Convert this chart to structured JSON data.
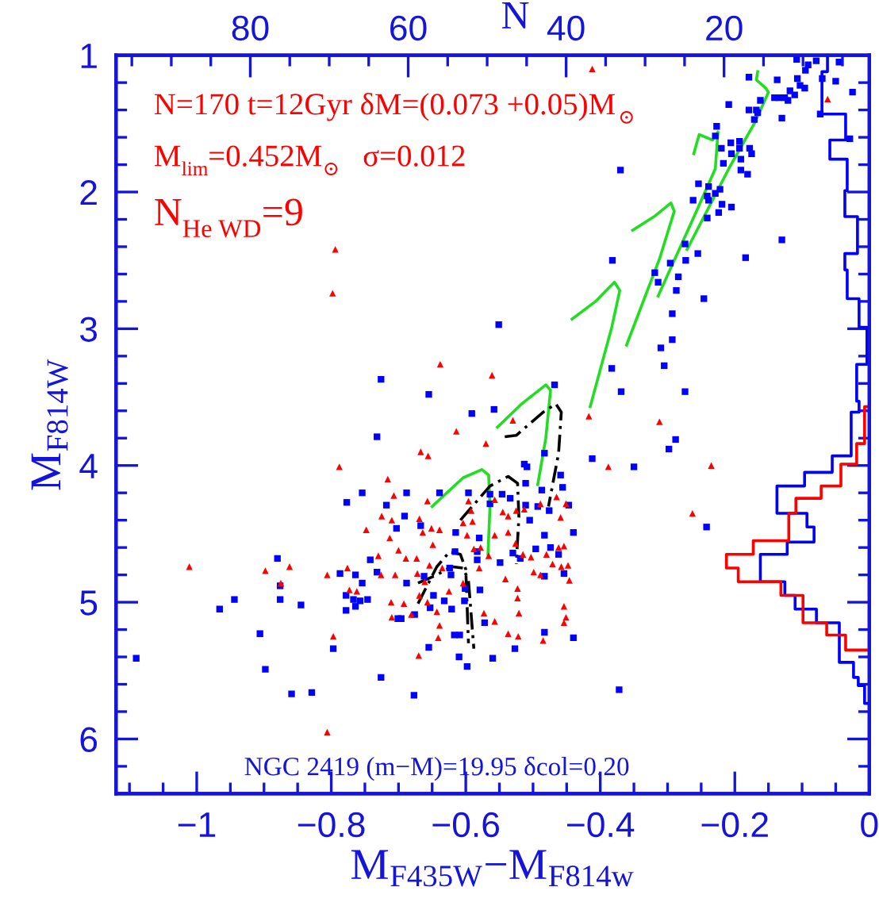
{
  "chart_data": {
    "type": "scatter",
    "xlabel": "M$_{F435W}$−M$_{F814w}$",
    "ylabel": "M$_{F814W}$",
    "x2label": "N",
    "xlim": [
      -1.12,
      0
    ],
    "ylim": [
      6.4,
      1
    ],
    "x2lim": [
      97,
      1.6
    ],
    "xticks": [
      {
        "value": -1,
        "label": "−1"
      },
      {
        "value": -0.8,
        "label": "−0.8"
      },
      {
        "value": -0.6,
        "label": "−0.6"
      },
      {
        "value": -0.4,
        "label": "−0.4"
      },
      {
        "value": -0.2,
        "label": "−0.2"
      },
      0
    ],
    "yticks": [
      1,
      2,
      3,
      4,
      5,
      6
    ],
    "x2ticks": [
      80,
      60,
      40,
      20
    ],
    "grid": false,
    "legend": false,
    "annotations": [
      "N=170 t=12Gyr δM=(0.073 +0.05)M$_{⊙}$",
      "M$_{lim}$=0.452M$_{⊙}$   σ=0.012",
      "N$_{He WD}$=9",
      "NGC 2419 (m−M)=19.95 δcol=0.20"
    ],
    "series": [
      {
        "color": "#0000ff",
        "marker": "square",
        "x": [
          -0.551,
          -0.726,
          -0.655,
          -0.591,
          -0.558,
          -0.732,
          -0.468,
          -0.513,
          -0.509,
          -0.483,
          -0.688,
          -0.639,
          -0.596,
          -0.564,
          -0.511,
          -0.487,
          -0.459,
          -0.456,
          -0.754,
          -0.777,
          -0.718,
          -0.691,
          -0.667,
          -0.703,
          -0.615,
          -0.58,
          -0.564,
          -0.546,
          -0.534,
          -0.511,
          -0.493,
          -0.476,
          -0.447,
          -0.505,
          -0.483,
          -0.474,
          -0.496,
          -0.462,
          -0.44,
          -0.88,
          -0.742,
          -0.764,
          -0.787,
          -0.754,
          -0.732,
          -0.688,
          -0.662,
          -0.624,
          -0.622,
          -0.616,
          -0.583,
          -0.583,
          -0.549,
          -0.53,
          -0.519,
          -0.483,
          -0.454,
          -0.876,
          -0.876,
          -0.845,
          -0.778,
          -0.767,
          -0.757,
          -0.746,
          -0.778,
          -0.764,
          -0.701,
          -0.696,
          -0.676,
          -0.653,
          -0.648,
          -0.632,
          -0.621,
          -0.602,
          -0.601,
          -0.579,
          -0.966,
          -0.944,
          -0.906,
          -0.797,
          -0.655,
          -0.617,
          -0.609,
          -0.61,
          -0.598,
          -0.56,
          -0.527,
          -0.483,
          -0.44,
          -1.09,
          -0.898,
          -0.726,
          -0.859,
          -0.829,
          -0.677,
          -0.572,
          -0.108,
          -0.091,
          -0.079,
          -0.095,
          -0.045,
          -0.179,
          -0.137,
          -0.107,
          -0.103,
          -0.096,
          -0.118,
          -0.126,
          -0.141,
          -0.134,
          -0.121,
          -0.111,
          -0.162,
          -0.209,
          -0.179,
          -0.168,
          -0.166,
          -0.171,
          -0.13,
          -0.227,
          -0.229,
          -0.206,
          -0.193,
          -0.22,
          -0.205,
          -0.193,
          -0.191,
          -0.178,
          -0.175,
          -0.217,
          -0.191,
          -0.181,
          -0.239,
          -0.241,
          -0.262,
          -0.229,
          -0.222,
          -0.239,
          -0.219,
          -0.241,
          -0.224,
          -0.205,
          -0.254,
          -0.13,
          -0.274,
          -0.184,
          -0.255,
          -0.273,
          -0.296,
          -0.284,
          -0.319,
          -0.314,
          -0.287,
          -0.246,
          -0.293,
          -0.293,
          -0.31,
          -0.305,
          -0.383,
          -0.369,
          -0.274,
          -0.288,
          -0.298,
          -0.025,
          -0.073,
          -0.029,
          -0.37,
          -0.382,
          -0.412,
          -0.35,
          -0.07,
          -0.05,
          -0.372,
          -0.242
        ],
        "values": [
          2.97,
          3.37,
          3.48,
          3.62,
          3.59,
          3.79,
          3.41,
          3.99,
          4.01,
          3.91,
          4.2,
          4.2,
          4.2,
          4.21,
          4.13,
          4.18,
          4.07,
          4.16,
          4.2,
          4.27,
          4.29,
          4.37,
          4.44,
          4.46,
          4.49,
          4.53,
          4.28,
          4.21,
          4.24,
          4.29,
          4.3,
          4.33,
          4.29,
          4.4,
          4.51,
          4.6,
          4.61,
          4.65,
          4.49,
          4.68,
          4.69,
          4.8,
          4.79,
          4.86,
          4.78,
          4.86,
          4.81,
          4.75,
          4.8,
          4.63,
          4.63,
          4.69,
          4.71,
          4.64,
          4.68,
          4.81,
          4.79,
          4.88,
          4.98,
          5.02,
          4.95,
          4.98,
          4.99,
          4.98,
          5.06,
          5.03,
          5.12,
          5.12,
          5.09,
          5.04,
          4.95,
          4.99,
          5.05,
          4.99,
          4.9,
          4.91,
          5.05,
          4.98,
          5.23,
          5.34,
          5.33,
          5.24,
          5.24,
          5.4,
          5.47,
          5.41,
          5.34,
          5.22,
          5.26,
          5.41,
          5.49,
          5.55,
          5.67,
          5.66,
          5.68,
          5.15,
          1.03,
          1.07,
          1.04,
          1.11,
          1.05,
          1.16,
          1.18,
          1.17,
          1.22,
          1.24,
          1.26,
          1.31,
          1.31,
          1.31,
          1.33,
          1.29,
          1.33,
          1.36,
          1.4,
          1.4,
          1.42,
          1.47,
          1.46,
          1.52,
          1.59,
          1.64,
          1.63,
          1.68,
          1.72,
          1.68,
          1.76,
          1.68,
          1.72,
          1.79,
          1.84,
          1.87,
          1.96,
          2.03,
          2.06,
          2.01,
          1.98,
          2.06,
          2.09,
          2.19,
          2.15,
          2.11,
          1.94,
          2.35,
          2.38,
          2.48,
          2.45,
          2.5,
          2.52,
          2.62,
          2.59,
          2.66,
          2.72,
          2.78,
          2.89,
          3.08,
          3.14,
          3.27,
          3.29,
          3.46,
          3.46,
          3.81,
          3.88,
          1.27,
          1.43,
          1.61,
          1.84,
          2.5,
          3.95,
          4.01,
          1.17,
          1.19,
          5.64,
          4.45
        ]
      },
      {
        "color": "#ff0000",
        "marker": "triangle",
        "x": [
          -0.638,
          -0.561,
          -0.614,
          -0.57,
          -0.667,
          -0.656,
          -0.788,
          -0.716,
          -0.53,
          -0.707,
          -0.657,
          -0.725,
          -0.71,
          -0.748,
          -0.713,
          -0.669,
          -0.664,
          -0.651,
          -0.639,
          -0.649,
          -0.7,
          -0.73,
          -0.689,
          -0.673,
          -0.635,
          -0.654,
          -0.661,
          -0.596,
          -0.604,
          -0.59,
          -0.557,
          -0.545,
          -0.537,
          -0.525,
          -0.513,
          -0.489,
          -0.465,
          -0.451,
          -0.459,
          -0.462,
          -0.454,
          -0.537,
          -0.557,
          -0.578,
          -0.588,
          -0.598,
          -0.566,
          -0.526,
          -0.515,
          -0.503,
          -0.48,
          -0.471,
          -0.499,
          -0.489,
          -0.458,
          -0.448,
          -1.011,
          -0.898,
          -0.862,
          -0.875,
          -0.806,
          -0.776,
          -0.773,
          -0.762,
          -0.726,
          -0.705,
          -0.672,
          -0.669,
          -0.692,
          -0.711,
          -0.657,
          -0.643,
          -0.681,
          -0.71,
          -0.639,
          -0.641,
          -0.67,
          -0.797,
          -0.625,
          -0.604,
          -0.573,
          -0.557,
          -0.541,
          -0.523,
          -0.523,
          -0.521,
          -0.537,
          -0.522,
          -0.485,
          -0.454,
          -0.451,
          -0.454,
          -0.446,
          -0.58,
          -0.592,
          -0.412,
          -0.062,
          -0.417,
          -0.312,
          -0.235,
          -0.388,
          -0.794,
          -0.798,
          -0.806,
          -0.263
        ],
        "values": [
          3.26,
          3.34,
          3.75,
          3.84,
          3.9,
          3.93,
          4.01,
          4.1,
          3.67,
          4.22,
          4.26,
          4.37,
          4.4,
          4.47,
          4.53,
          4.39,
          4.49,
          4.46,
          4.47,
          4.58,
          4.62,
          4.66,
          4.68,
          4.68,
          4.75,
          4.73,
          4.85,
          4.26,
          4.42,
          4.41,
          4.25,
          4.34,
          4.37,
          4.33,
          4.32,
          4.28,
          4.23,
          4.28,
          4.38,
          4.6,
          4.59,
          4.49,
          4.51,
          4.6,
          4.61,
          4.51,
          4.66,
          4.57,
          4.65,
          4.67,
          4.65,
          4.72,
          4.78,
          4.8,
          4.74,
          4.73,
          4.74,
          4.77,
          4.74,
          4.86,
          4.8,
          4.75,
          4.91,
          4.92,
          4.8,
          4.8,
          4.79,
          4.95,
          5.01,
          5.0,
          5.0,
          5.07,
          5.09,
          5.11,
          5.17,
          5.26,
          5.39,
          5.25,
          4.92,
          4.86,
          5.08,
          5.14,
          4.83,
          4.9,
          4.97,
          5.08,
          5.23,
          5.25,
          5.28,
          5.03,
          5.11,
          5.15,
          4.84,
          4.75,
          4.33,
          1.1,
          1.32,
          3.64,
          3.68,
          4.0,
          4.01,
          2.42,
          2.74,
          5.95,
          4.35
        ]
      },
      {
        "type": "line",
        "color": "#22dd22",
        "line_style": "solid",
        "x": [
          -0.65,
          -0.604,
          -0.576,
          -0.566,
          -0.564,
          -0.567
        ],
        "values": [
          4.3,
          4.09,
          4.03,
          4.07,
          4.3,
          4.65
        ]
      },
      {
        "type": "line",
        "color": "#22dd22",
        "line_style": "solid",
        "x": [
          -0.553,
          -0.517,
          -0.481,
          -0.474,
          -0.481,
          -0.493
        ],
        "values": [
          3.72,
          3.55,
          3.41,
          3.45,
          3.8,
          4.14
        ]
      },
      {
        "type": "line",
        "color": "#22dd22",
        "line_style": "solid",
        "x": [
          -0.442,
          -0.407,
          -0.379,
          -0.371,
          -0.383,
          -0.415
        ],
        "values": [
          2.93,
          2.8,
          2.66,
          2.72,
          2.99,
          3.57
        ]
      },
      {
        "type": "line",
        "color": "#22dd22",
        "line_style": "solid",
        "x": [
          -0.352,
          -0.32,
          -0.295,
          -0.29,
          -0.312,
          -0.361
        ],
        "values": [
          2.28,
          2.18,
          2.08,
          2.14,
          2.49,
          3.12
        ]
      },
      {
        "type": "line",
        "color": "#22dd22",
        "line_style": "solid",
        "x": [
          -0.261,
          -0.253,
          -0.233,
          -0.225,
          -0.229,
          -0.257,
          -0.314
        ],
        "values": [
          1.72,
          1.58,
          1.62,
          1.56,
          1.83,
          2.14,
          2.76
        ]
      },
      {
        "type": "line",
        "color": "#22dd22",
        "line_style": "solid",
        "x": [
          -0.166,
          -0.168,
          -0.154,
          -0.15,
          -0.17,
          -0.209,
          -0.271
        ],
        "values": [
          1.12,
          1.18,
          1.24,
          1.27,
          1.49,
          1.83,
          2.42
        ]
      },
      {
        "type": "line",
        "color": "#000000",
        "line_style": "dashed",
        "x": [
          -0.542,
          -0.525,
          -0.485,
          -0.466,
          -0.458,
          -0.462,
          -0.477
        ],
        "values": [
          3.79,
          3.78,
          3.61,
          3.55,
          3.61,
          3.91,
          4.3
        ]
      },
      {
        "type": "line",
        "color": "#000000",
        "line_style": "dashed",
        "x": [
          -0.608,
          -0.564,
          -0.537,
          -0.523,
          -0.521,
          -0.525
        ],
        "values": [
          4.4,
          4.15,
          4.08,
          4.13,
          4.38,
          4.72
        ]
      },
      {
        "type": "line",
        "color": "#000000",
        "line_style": "dashed",
        "x": [
          -0.671,
          -0.643,
          -0.624,
          -0.608,
          -0.6,
          -0.596
        ],
        "values": [
          5.01,
          4.74,
          4.63,
          4.65,
          4.76,
          5.3
        ]
      },
      {
        "type": "line",
        "color": "#000000",
        "line_style": "dashed",
        "x": [
          -0.671,
          -0.643,
          -0.621,
          -0.604,
          -0.596,
          -0.588
        ],
        "values": [
          4.86,
          4.8,
          4.74,
          4.75,
          4.84,
          5.34
        ]
      },
      {
        "type": "line",
        "axis": "x2",
        "color": "#0000ff",
        "line_style": "solid",
        "x": [
          6.9,
          6.9,
          7.6,
          7.6,
          4.6,
          4.6,
          6.6,
          6.6,
          4.4,
          4.4,
          4.7,
          4.7,
          3.1,
          3.1,
          4.7,
          4.7,
          4.4,
          4.4,
          2.9,
          2.9,
          1.9,
          1.9,
          3.2,
          3.2,
          2.9,
          2.9,
          3.9,
          3.9,
          6.3,
          6.3,
          9.8,
          9.8,
          13.3,
          13.3,
          9.5,
          9.5,
          8.6,
          8.6,
          12.0,
          12.0,
          15.4,
          15.4,
          12.3,
          12.3,
          11.0,
          11.0,
          8.3,
          8.3,
          5.4,
          5.4,
          3.6,
          3.6,
          3.0,
          3.0,
          2.2,
          2.2,
          1.6
        ],
        "values": [
          1.0,
          1.12,
          1.12,
          1.43,
          1.43,
          1.62,
          1.62,
          1.76,
          1.76,
          1.99,
          1.99,
          2.18,
          2.18,
          2.45,
          2.45,
          2.57,
          2.57,
          2.78,
          2.78,
          2.99,
          2.99,
          3.26,
          3.26,
          3.53,
          3.53,
          3.61,
          3.61,
          3.93,
          3.93,
          4.05,
          4.05,
          4.15,
          4.15,
          4.35,
          4.35,
          4.45,
          4.45,
          4.56,
          4.56,
          4.65,
          4.65,
          4.85,
          4.85,
          4.95,
          4.95,
          5.05,
          5.05,
          5.15,
          5.15,
          5.44,
          5.44,
          5.55,
          5.55,
          5.61,
          5.61,
          5.74,
          5.74
        ]
      },
      {
        "type": "line",
        "axis": "x2",
        "color": "#ff0000",
        "line_style": "solid",
        "x": [
          1.6,
          2.2,
          2.2,
          3.2,
          3.2,
          5.2,
          5.2,
          7.7,
          7.7,
          10.9,
          10.9,
          11.8,
          11.8,
          16.3,
          16.3,
          19.7,
          19.7,
          18.2,
          18.2,
          12.8,
          12.8,
          10.0,
          10.0,
          7.0,
          7.0,
          4.6,
          4.6,
          1.6
        ],
        "values": [
          3.57,
          3.57,
          3.84,
          3.84,
          3.99,
          3.99,
          4.15,
          4.15,
          4.24,
          4.24,
          4.35,
          4.35,
          4.55,
          4.55,
          4.65,
          4.65,
          4.75,
          4.75,
          4.85,
          4.85,
          4.95,
          4.95,
          5.15,
          5.15,
          5.24,
          5.24,
          5.35,
          5.35
        ]
      }
    ]
  }
}
